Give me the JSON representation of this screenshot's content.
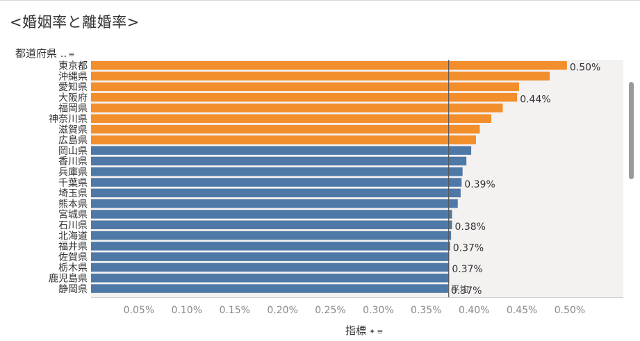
{
  "title": "<婚姻率と離婚率>",
  "row_header": {
    "label": "都道府県 ..",
    "sort_icon": "sort-icon"
  },
  "x_axis_title": {
    "label": "指標",
    "pin_icon": "pin-icon",
    "sort_icon": "sort-icon"
  },
  "colors": {
    "highlight": "#F28E2B",
    "normal": "#4E79A7",
    "panel": "#F4F1F1",
    "reference_line": "#555555"
  },
  "chart_data": {
    "type": "bar",
    "orientation": "horizontal",
    "xlabel": "指標",
    "ylabel": "都道府県",
    "xlim": [
      0,
      0.55
    ],
    "ticks": [
      "0.05%",
      "0.10%",
      "0.15%",
      "0.20%",
      "0.25%",
      "0.30%",
      "0.35%",
      "0.40%",
      "0.45%",
      "0.50%"
    ],
    "tick_values": [
      0.05,
      0.1,
      0.15,
      0.2,
      0.25,
      0.3,
      0.35,
      0.4,
      0.45,
      0.5
    ],
    "reference_line": {
      "label": "平均",
      "value": 0.3735
    },
    "bars": [
      {
        "category": "東京都",
        "value": 0.497,
        "highlight": true,
        "label": "0.50%"
      },
      {
        "category": "沖縄県",
        "value": 0.479,
        "highlight": true,
        "label": ""
      },
      {
        "category": "愛知県",
        "value": 0.447,
        "highlight": true,
        "label": ""
      },
      {
        "category": "大阪府",
        "value": 0.445,
        "highlight": true,
        "label": "0.44%"
      },
      {
        "category": "福岡県",
        "value": 0.43,
        "highlight": true,
        "label": ""
      },
      {
        "category": "神奈川県",
        "value": 0.418,
        "highlight": true,
        "label": ""
      },
      {
        "category": "滋賀県",
        "value": 0.406,
        "highlight": true,
        "label": ""
      },
      {
        "category": "広島県",
        "value": 0.402,
        "highlight": true,
        "label": ""
      },
      {
        "category": "岡山県",
        "value": 0.397,
        "highlight": false,
        "label": ""
      },
      {
        "category": "香川県",
        "value": 0.392,
        "highlight": false,
        "label": ""
      },
      {
        "category": "兵庫県",
        "value": 0.388,
        "highlight": false,
        "label": ""
      },
      {
        "category": "千葉県",
        "value": 0.387,
        "highlight": false,
        "label": "0.39%"
      },
      {
        "category": "埼玉県",
        "value": 0.386,
        "highlight": false,
        "label": ""
      },
      {
        "category": "熊本県",
        "value": 0.383,
        "highlight": false,
        "label": ""
      },
      {
        "category": "宮城県",
        "value": 0.377,
        "highlight": false,
        "label": ""
      },
      {
        "category": "石川県",
        "value": 0.377,
        "highlight": false,
        "label": "0.38%"
      },
      {
        "category": "北海道",
        "value": 0.376,
        "highlight": false,
        "label": ""
      },
      {
        "category": "福井県",
        "value": 0.375,
        "highlight": false,
        "label": "0.37%"
      },
      {
        "category": "佐賀県",
        "value": 0.374,
        "highlight": false,
        "label": ""
      },
      {
        "category": "栃木県",
        "value": 0.374,
        "highlight": false,
        "label": "0.37%"
      },
      {
        "category": "鹿児島県",
        "value": 0.374,
        "highlight": false,
        "label": ""
      },
      {
        "category": "静岡県",
        "value": 0.373,
        "highlight": false,
        "label": "0.37%"
      }
    ]
  }
}
